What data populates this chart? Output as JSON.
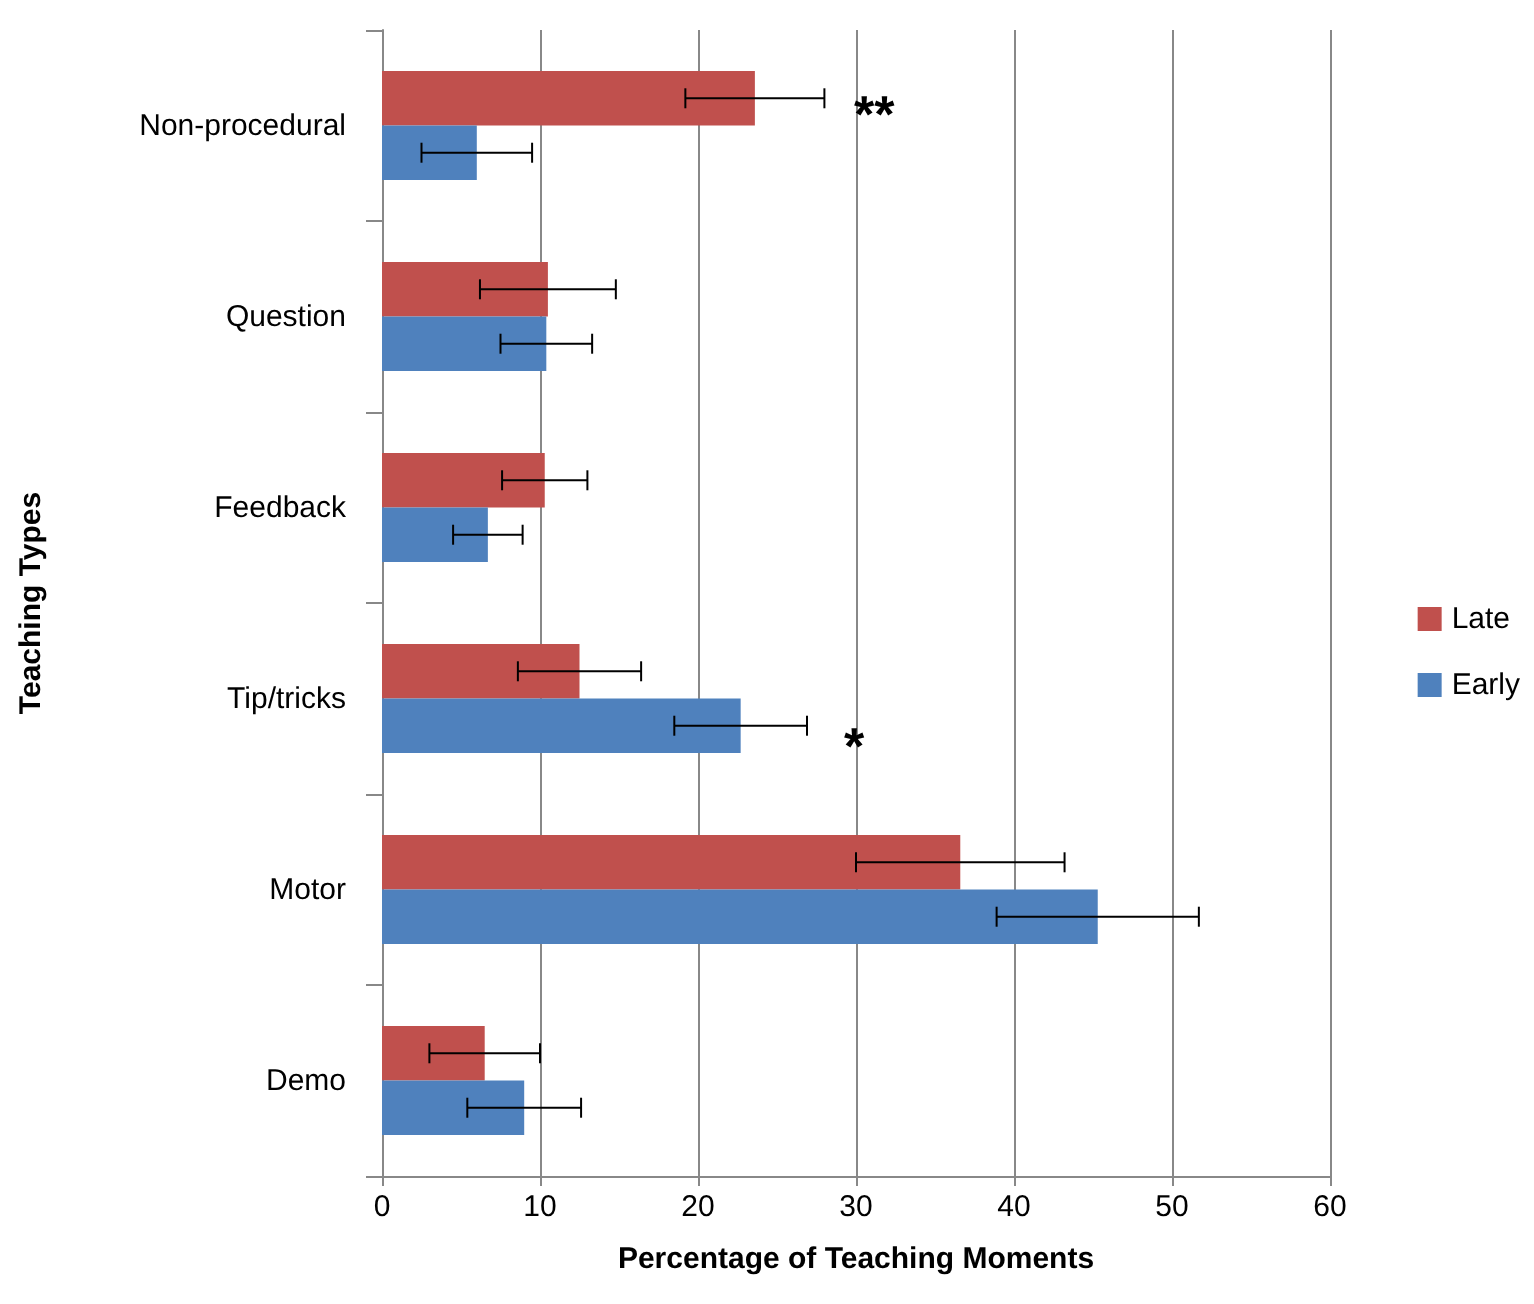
{
  "chart_data": {
    "type": "bar",
    "orientation": "horizontal",
    "xlabel": "Percentage of Teaching Moments",
    "ylabel": "Teaching Types",
    "categories": [
      "Non-procedural",
      "Question",
      "Feedback",
      "Tip/tricks",
      "Motor",
      "Demo"
    ],
    "series": [
      {
        "name": "Late",
        "color": "#c0504d",
        "values": [
          23.6,
          10.5,
          10.3,
          12.5,
          36.6,
          6.5
        ],
        "errors": [
          4.4,
          4.3,
          2.7,
          3.9,
          6.6,
          3.5
        ]
      },
      {
        "name": "Early",
        "color": "#4f81bd",
        "values": [
          6.0,
          10.4,
          6.7,
          22.7,
          45.3,
          9.0
        ],
        "errors": [
          3.5,
          2.9,
          2.2,
          4.2,
          6.4,
          3.6
        ]
      }
    ],
    "xlim": [
      0,
      60
    ],
    "xticks": [
      0,
      10,
      20,
      30,
      40,
      50,
      60
    ],
    "grid": "x",
    "legend": "right",
    "annotations": [
      "**",
      "*"
    ]
  }
}
